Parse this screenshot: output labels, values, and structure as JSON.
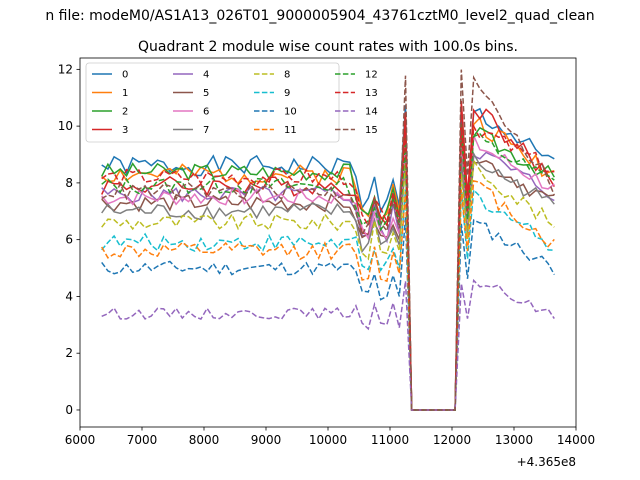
{
  "suptitle": "n file: modeM0/AS1A13_026T01_9000005904_43761cztM0_level2_quad_clean",
  "chart_data": {
    "type": "line",
    "title": "Quadrant 2 module wise count rates with 100.0s bins.",
    "xlabel": "",
    "ylabel": "",
    "x_offset_label": "+4.365e8",
    "xlim": [
      6000,
      14000
    ],
    "ylim": [
      -0.6,
      12.4
    ],
    "xticks": [
      6000,
      7000,
      8000,
      9000,
      10000,
      11000,
      12000,
      13000,
      14000
    ],
    "yticks": [
      0,
      2,
      4,
      6,
      8,
      10,
      12
    ],
    "grid": false,
    "legend": {
      "position": "top-left",
      "columns": 4
    },
    "x_first": 6350,
    "x_step": 100,
    "gap": {
      "start": 11250,
      "end": 12150,
      "value": 0
    },
    "series": [
      {
        "name": "0",
        "color": "#1f77b4",
        "style": "solid",
        "base": 8.6,
        "amp": 0.35,
        "dip": 7.2,
        "post_peak": 10.6,
        "post_end": 8.6,
        "seed": 1
      },
      {
        "name": "1",
        "color": "#ff7f0e",
        "style": "solid",
        "base": 8.3,
        "amp": 0.35,
        "dip": 7.0,
        "post_peak": 10.2,
        "post_end": 8.3,
        "seed": 2
      },
      {
        "name": "2",
        "color": "#2ca02c",
        "style": "solid",
        "base": 8.4,
        "amp": 0.3,
        "dip": 6.8,
        "post_peak": 9.8,
        "post_end": 8.2,
        "seed": 3
      },
      {
        "name": "3",
        "color": "#d62728",
        "style": "solid",
        "base": 7.9,
        "amp": 0.35,
        "dip": 6.5,
        "post_peak": 10.8,
        "post_end": 8.0,
        "seed": 4
      },
      {
        "name": "4",
        "color": "#9467bd",
        "style": "solid",
        "base": 7.6,
        "amp": 0.3,
        "dip": 6.2,
        "post_peak": 9.2,
        "post_end": 7.6,
        "seed": 5
      },
      {
        "name": "5",
        "color": "#8c564b",
        "style": "solid",
        "base": 7.3,
        "amp": 0.3,
        "dip": 6.0,
        "post_peak": 9.0,
        "post_end": 7.3,
        "seed": 6
      },
      {
        "name": "6",
        "color": "#e377c2",
        "style": "solid",
        "base": 7.5,
        "amp": 0.3,
        "dip": 6.2,
        "post_peak": 9.4,
        "post_end": 7.8,
        "seed": 7
      },
      {
        "name": "7",
        "color": "#7f7f7f",
        "style": "solid",
        "base": 7.0,
        "amp": 0.3,
        "dip": 5.8,
        "post_peak": 8.8,
        "post_end": 7.2,
        "seed": 8
      },
      {
        "name": "8",
        "color": "#bcbd22",
        "style": "dashed",
        "base": 6.6,
        "amp": 0.3,
        "dip": 5.6,
        "post_peak": 8.6,
        "post_end": 6.5,
        "seed": 9
      },
      {
        "name": "9",
        "color": "#17becf",
        "style": "dashed",
        "base": 5.9,
        "amp": 0.3,
        "dip": 5.0,
        "post_peak": 7.6,
        "post_end": 5.8,
        "seed": 10
      },
      {
        "name": "10",
        "color": "#1f77b4",
        "style": "dashed",
        "base": 5.0,
        "amp": 0.25,
        "dip": 4.0,
        "post_peak": 6.6,
        "post_end": 5.0,
        "seed": 11
      },
      {
        "name": "11",
        "color": "#ff7f0e",
        "style": "dashed",
        "base": 5.6,
        "amp": 0.3,
        "dip": 4.8,
        "post_peak": 8.0,
        "post_end": 5.8,
        "seed": 12
      },
      {
        "name": "12",
        "color": "#2ca02c",
        "style": "dashed",
        "base": 7.9,
        "amp": 0.3,
        "dip": 6.6,
        "post_peak": 9.6,
        "post_end": 8.0,
        "seed": 13
      },
      {
        "name": "13",
        "color": "#d62728",
        "style": "dashed",
        "base": 8.2,
        "amp": 0.3,
        "dip": 6.8,
        "post_peak": 10.0,
        "post_end": 8.4,
        "seed": 14
      },
      {
        "name": "14",
        "color": "#9467bd",
        "style": "dashed",
        "base": 3.4,
        "amp": 0.2,
        "dip": 2.9,
        "post_peak": 4.6,
        "post_end": 3.3,
        "seed": 15
      },
      {
        "name": "15",
        "color": "#8c564b",
        "style": "dashed",
        "base": 7.7,
        "amp": 0.3,
        "dip": 6.4,
        "post_peak": 11.8,
        "post_end": 7.8,
        "seed": 16
      }
    ]
  }
}
